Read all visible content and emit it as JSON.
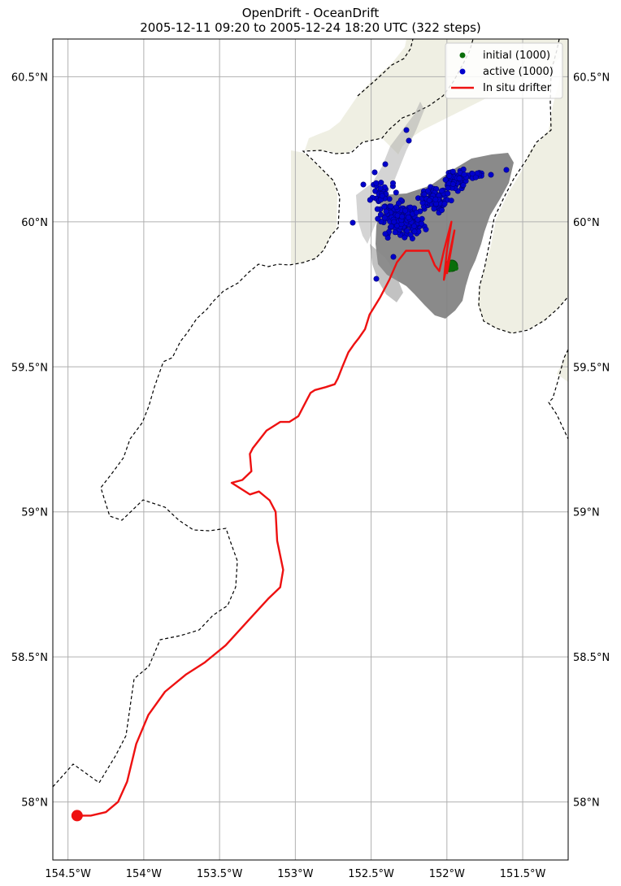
{
  "title_line1": "OpenDrift - OceanDrift",
  "title_line2": "2005-12-11 09:20 to 2005-12-24 18:20 UTC (322 steps)",
  "map": {
    "lon_range": [
      -154.6,
      -151.2
    ],
    "lat_range": [
      57.8,
      60.63
    ],
    "lon_ticks": [
      {
        "value": -154.5,
        "label": "154.5°W"
      },
      {
        "value": -154.0,
        "label": "154°W"
      },
      {
        "value": -153.5,
        "label": "153.5°W"
      },
      {
        "value": -153.0,
        "label": "153°W"
      },
      {
        "value": -152.5,
        "label": "152.5°W"
      },
      {
        "value": -152.0,
        "label": "152°W"
      },
      {
        "value": -151.5,
        "label": "151.5°W"
      }
    ],
    "lat_ticks": [
      {
        "value": 60.5,
        "label": "60.5°N"
      },
      {
        "value": 60.0,
        "label": "60°N"
      },
      {
        "value": 59.5,
        "label": "59.5°N"
      },
      {
        "value": 59.0,
        "label": "59°N"
      },
      {
        "value": 58.5,
        "label": "58.5°N"
      },
      {
        "value": 58.0,
        "label": "58°N"
      }
    ],
    "grid": true,
    "colors": {
      "land": "#efefe3",
      "ocean": "#ffffff",
      "trajectory": "#808080",
      "initial": "#0a6e0a",
      "active": "#0000cc",
      "drifter": "#ee1111",
      "boundary": "#000000"
    }
  },
  "legend": {
    "placement": "top-right",
    "items": [
      {
        "label": "initial (1000)",
        "kind": "dot",
        "color": "#0a6e0a"
      },
      {
        "label": "active (1000)",
        "kind": "dot",
        "color": "#0000cc"
      },
      {
        "label": "In situ drifter",
        "kind": "line",
        "color": "#ee1111"
      }
    ]
  },
  "drifter_track": [
    [
      -154.44,
      57.953
    ],
    [
      -154.35,
      57.953
    ],
    [
      -154.25,
      57.965
    ],
    [
      -154.17,
      58.0
    ],
    [
      -154.11,
      58.07
    ],
    [
      -154.05,
      58.2
    ],
    [
      -153.97,
      58.3
    ],
    [
      -153.86,
      58.38
    ],
    [
      -153.72,
      58.44
    ],
    [
      -153.6,
      58.48
    ],
    [
      -153.46,
      58.54
    ],
    [
      -153.32,
      58.62
    ],
    [
      -153.18,
      58.7
    ],
    [
      -153.1,
      58.74
    ],
    [
      -153.08,
      58.8
    ],
    [
      -153.12,
      58.9
    ],
    [
      -153.13,
      59.0
    ],
    [
      -153.17,
      59.04
    ],
    [
      -153.24,
      59.07
    ],
    [
      -153.3,
      59.06
    ],
    [
      -153.42,
      59.1
    ],
    [
      -153.35,
      59.11
    ],
    [
      -153.29,
      59.14
    ],
    [
      -153.3,
      59.2
    ],
    [
      -153.28,
      59.22
    ],
    [
      -153.19,
      59.28
    ],
    [
      -153.1,
      59.31
    ],
    [
      -153.04,
      59.31
    ],
    [
      -152.98,
      59.33
    ],
    [
      -152.93,
      59.38
    ],
    [
      -152.9,
      59.41
    ],
    [
      -152.87,
      59.42
    ],
    [
      -152.8,
      59.43
    ],
    [
      -152.74,
      59.44
    ],
    [
      -152.72,
      59.46
    ],
    [
      -152.69,
      59.5
    ],
    [
      -152.65,
      59.55
    ],
    [
      -152.61,
      59.58
    ],
    [
      -152.58,
      59.6
    ],
    [
      -152.54,
      59.63
    ],
    [
      -152.51,
      59.68
    ],
    [
      -152.44,
      59.74
    ],
    [
      -152.38,
      59.8
    ],
    [
      -152.33,
      59.86
    ],
    [
      -152.27,
      59.9
    ],
    [
      -152.2,
      59.9
    ],
    [
      -152.12,
      59.9
    ],
    [
      -152.08,
      59.85
    ],
    [
      -152.05,
      59.83
    ],
    [
      -152.02,
      59.9
    ],
    [
      -151.97,
      60.0
    ],
    [
      -152.0,
      59.9
    ],
    [
      -152.02,
      59.8
    ],
    [
      -151.99,
      59.87
    ],
    [
      -151.95,
      59.97
    ],
    [
      -152.0,
      59.82
    ]
  ],
  "drifter_start": [
    -154.44,
    57.953
  ]
}
